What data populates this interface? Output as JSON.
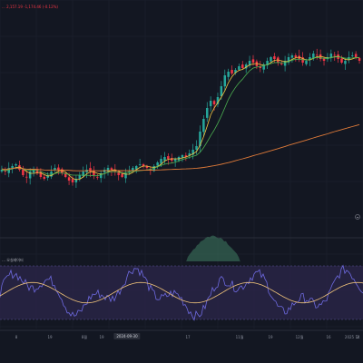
{
  "header": {
    "ohlc_text": "... 2,157.19 -1,174.46 (-0.12%)"
  },
  "sub_pane_label": "… 오실레이터",
  "colors": {
    "up": "#26a69a",
    "down": "#f23645",
    "ma_short": "#f5c842",
    "ma_mid": "#4caf50",
    "ma_long": "#e07b39",
    "osc_line": "#6e6ae0",
    "osc_signal": "#f0c37a",
    "osc_band": "#2a2548"
  },
  "x_axis": {
    "labels": [
      "8",
      "19",
      "8월",
      "19",
      "2024-09-30",
      "17",
      "11월",
      "19",
      "12월",
      "16",
      "2025",
      "14",
      "2"
    ],
    "selected_date": "2024-09-30"
  },
  "chart_data": {
    "type": "candlestick",
    "title": "",
    "xlabel": "",
    "ylabel": "",
    "x_axis_tick_labels": [
      "8",
      "19",
      "8월",
      "19",
      "2024-09-30",
      "17",
      "11월",
      "19",
      "12월",
      "16",
      "2025",
      "14",
      "2"
    ],
    "price_range": [
      0,
      100
    ],
    "closes": [
      34,
      33,
      35,
      36,
      37,
      34,
      31,
      30,
      33,
      34,
      32,
      30,
      29,
      31,
      33,
      35,
      34,
      32,
      30,
      28,
      27,
      29,
      31,
      33,
      34,
      33,
      31,
      30,
      32,
      34,
      35,
      34,
      33,
      31,
      30,
      32,
      33,
      35,
      36,
      37,
      36,
      35,
      34,
      36,
      38,
      40,
      41,
      40,
      39,
      40,
      41,
      42,
      41,
      43,
      45,
      47,
      55,
      62,
      68,
      72,
      70,
      74,
      80,
      86,
      88,
      87,
      89,
      91,
      90,
      92,
      94,
      93,
      91,
      90,
      92,
      94,
      96,
      95,
      93,
      92,
      94,
      96,
      97,
      96,
      95,
      93,
      94,
      96,
      98,
      97,
      95,
      94,
      96,
      98,
      97,
      95,
      93,
      94,
      96,
      97,
      96,
      94
    ],
    "moving_averages": {
      "short_period": "5",
      "mid_period": "20",
      "long_period": "200"
    },
    "oscillator": {
      "range": [
        -1,
        1
      ],
      "histogram_peak_region": "around 11월"
    }
  }
}
